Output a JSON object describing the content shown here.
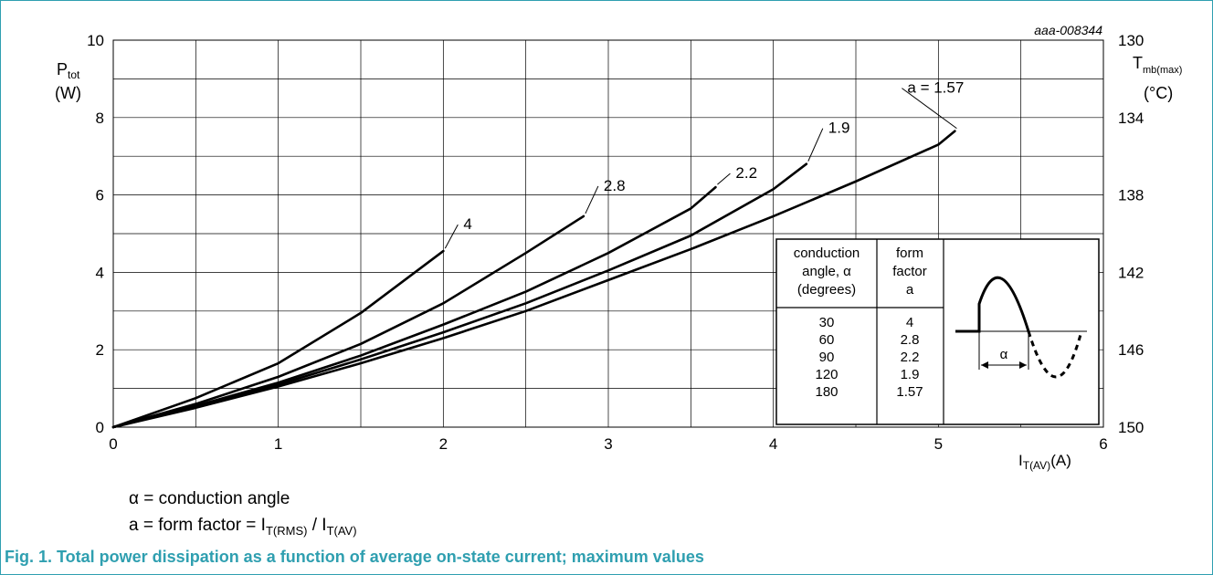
{
  "figure_id": "aaa-008344",
  "caption": "Fig. 1. Total power dissipation as a function of average on-state current; maximum values",
  "notes": {
    "alpha_symbol": "α",
    "alpha_text": " = conduction angle",
    "a_prefix": "a = form factor = I",
    "a_sub1": "T(RMS)",
    "a_mid": " / I",
    "a_sub2": "T(AV)"
  },
  "colors": {
    "accent": "#2f9fb0",
    "grid": "#000000",
    "curve": "#000000"
  },
  "inset": {
    "col1_header": [
      "conduction",
      "angle, α",
      "(degrees)"
    ],
    "col2_header": [
      "form",
      "factor",
      "a"
    ],
    "rows": [
      [
        "30",
        "4"
      ],
      [
        "60",
        "2.8"
      ],
      [
        "90",
        "2.2"
      ],
      [
        "120",
        "1.9"
      ],
      [
        "180",
        "1.57"
      ]
    ],
    "waveform_label": "α"
  },
  "chart_data": {
    "type": "line",
    "xlabel_main": "I",
    "xlabel_sub": "T(AV)",
    "xlabel_unit": "(A)",
    "ylabel_main": "P",
    "ylabel_sub": "tot",
    "ylabel_unit": "(W)",
    "y2label_main": "T",
    "y2label_sub": "mb(max)",
    "y2label_unit": "(°C)",
    "xlim": [
      0,
      6
    ],
    "ylim": [
      0,
      10
    ],
    "xticks": [
      "0",
      "1",
      "2",
      "3",
      "4",
      "5",
      "6"
    ],
    "yticks": [
      "0",
      "2",
      "4",
      "6",
      "8",
      "10"
    ],
    "y2ticks": [
      "150",
      "146",
      "142",
      "138",
      "134",
      "130"
    ],
    "grid": true,
    "series": [
      {
        "name": "4",
        "x": [
          0,
          0.5,
          1,
          1.5,
          2.0
        ],
        "y": [
          0,
          0.75,
          1.65,
          2.95,
          4.55
        ]
      },
      {
        "name": "2.8",
        "x": [
          0,
          0.5,
          1,
          1.5,
          2,
          2.5,
          2.85
        ],
        "y": [
          0,
          0.6,
          1.3,
          2.15,
          3.2,
          4.5,
          5.45
        ]
      },
      {
        "name": "2.2",
        "x": [
          0,
          0.5,
          1,
          1.5,
          2,
          2.5,
          3,
          3.5,
          3.65
        ],
        "y": [
          0,
          0.55,
          1.15,
          1.85,
          2.65,
          3.5,
          4.5,
          5.65,
          6.2
        ]
      },
      {
        "name": "1.9",
        "x": [
          0,
          0.5,
          1,
          1.5,
          2,
          2.5,
          3,
          3.5,
          4,
          4.2
        ],
        "y": [
          0,
          0.52,
          1.1,
          1.75,
          2.45,
          3.2,
          4.05,
          4.95,
          6.15,
          6.8
        ]
      },
      {
        "name": "a = 1.57",
        "x": [
          0,
          0.5,
          1,
          1.5,
          2,
          2.5,
          3,
          3.5,
          4,
          4.5,
          5,
          5.1
        ],
        "y": [
          0,
          0.5,
          1.05,
          1.65,
          2.3,
          3.0,
          3.8,
          4.6,
          5.45,
          6.35,
          7.3,
          7.65
        ]
      }
    ]
  }
}
